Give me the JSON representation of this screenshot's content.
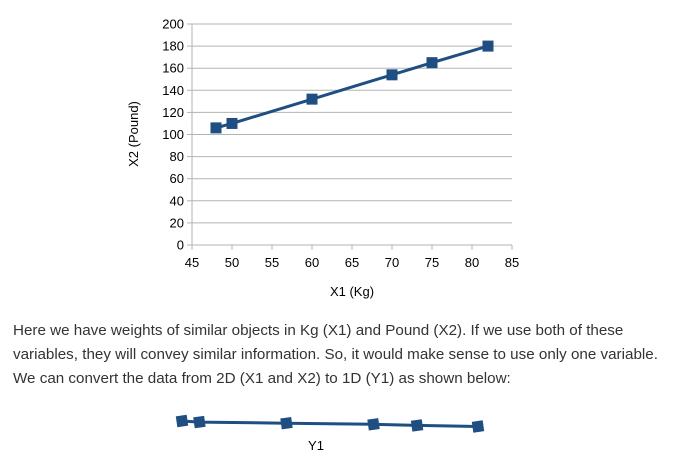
{
  "chart_data": [
    {
      "type": "line",
      "xlabel": "X1 (Kg)",
      "ylabel": "X2 (Pound)",
      "xlim": [
        45,
        85
      ],
      "ylim": [
        0,
        200
      ],
      "xticks": [
        45,
        50,
        55,
        60,
        65,
        70,
        75,
        80,
        85
      ],
      "yticks": [
        0,
        20,
        40,
        60,
        80,
        100,
        120,
        140,
        160,
        180,
        200
      ],
      "grid": "horizontal",
      "marker": "square",
      "color": "#1f4e82",
      "series": [
        {
          "x": [
            48,
            50,
            60,
            70,
            75,
            82
          ],
          "y": [
            106,
            110,
            132,
            154,
            165,
            180
          ]
        }
      ]
    },
    {
      "type": "line",
      "xlabel": "Y1",
      "marker": "square",
      "color": "#1f4e82",
      "series": [
        {
          "x": [
            1,
            2,
            3,
            4,
            5,
            6
          ],
          "y": [
            0,
            0,
            0,
            0,
            0,
            0
          ]
        }
      ]
    }
  ],
  "text": {
    "paragraph_lines": [
      "Here we have weights of similar objects in Kg (X1) and Pound (X2). If we use both of these",
      "variables, they will convey similar information. So, it would make sense to use only one variable.",
      "We can convert the data from 2D (X1 and X2) to 1D (Y1) as shown below:"
    ]
  }
}
